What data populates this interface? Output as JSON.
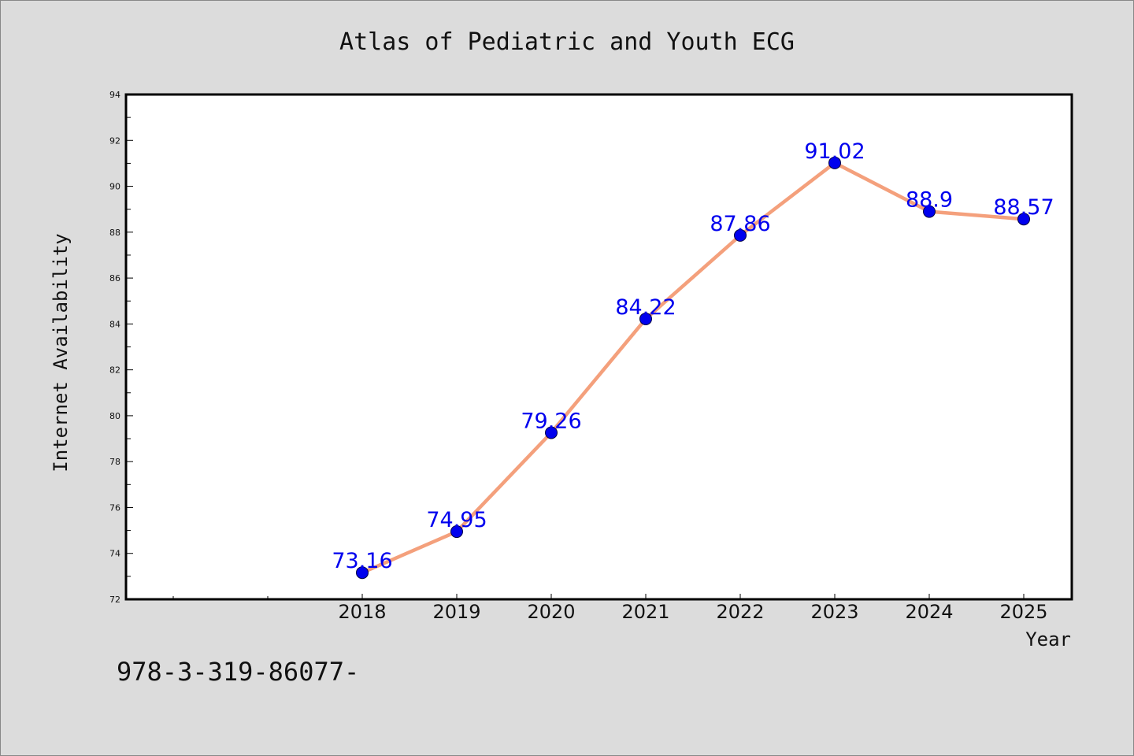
{
  "chart_data": {
    "type": "line",
    "title": "Atlas of Pediatric and Youth ECG",
    "xlabel": "Year",
    "ylabel": "Internet Availability",
    "x": [
      "2018",
      "2019",
      "2020",
      "2021",
      "2022",
      "2023",
      "2024",
      "2025"
    ],
    "series": [
      {
        "values": [
          73.16,
          74.95,
          79.26,
          84.22,
          87.86,
          91.02,
          88.9,
          88.57
        ],
        "data_labels": [
          "73.16",
          "74.95",
          "79.26",
          "84.22",
          "87.86",
          "91.02",
          "88.9",
          "88.57"
        ],
        "line_color": "#f4a07c",
        "marker_color": "#0000ee"
      }
    ],
    "ylim": [
      72,
      94
    ],
    "yticks": [
      "72",
      "74",
      "76",
      "78",
      "80",
      "82",
      "84",
      "86",
      "88",
      "90",
      "92",
      "94"
    ],
    "grid": false,
    "legend": "none",
    "plot_background": "#ffffff",
    "page_background": "#dcdcdc"
  },
  "footer": {
    "text": "978-3-319-86077-"
  }
}
